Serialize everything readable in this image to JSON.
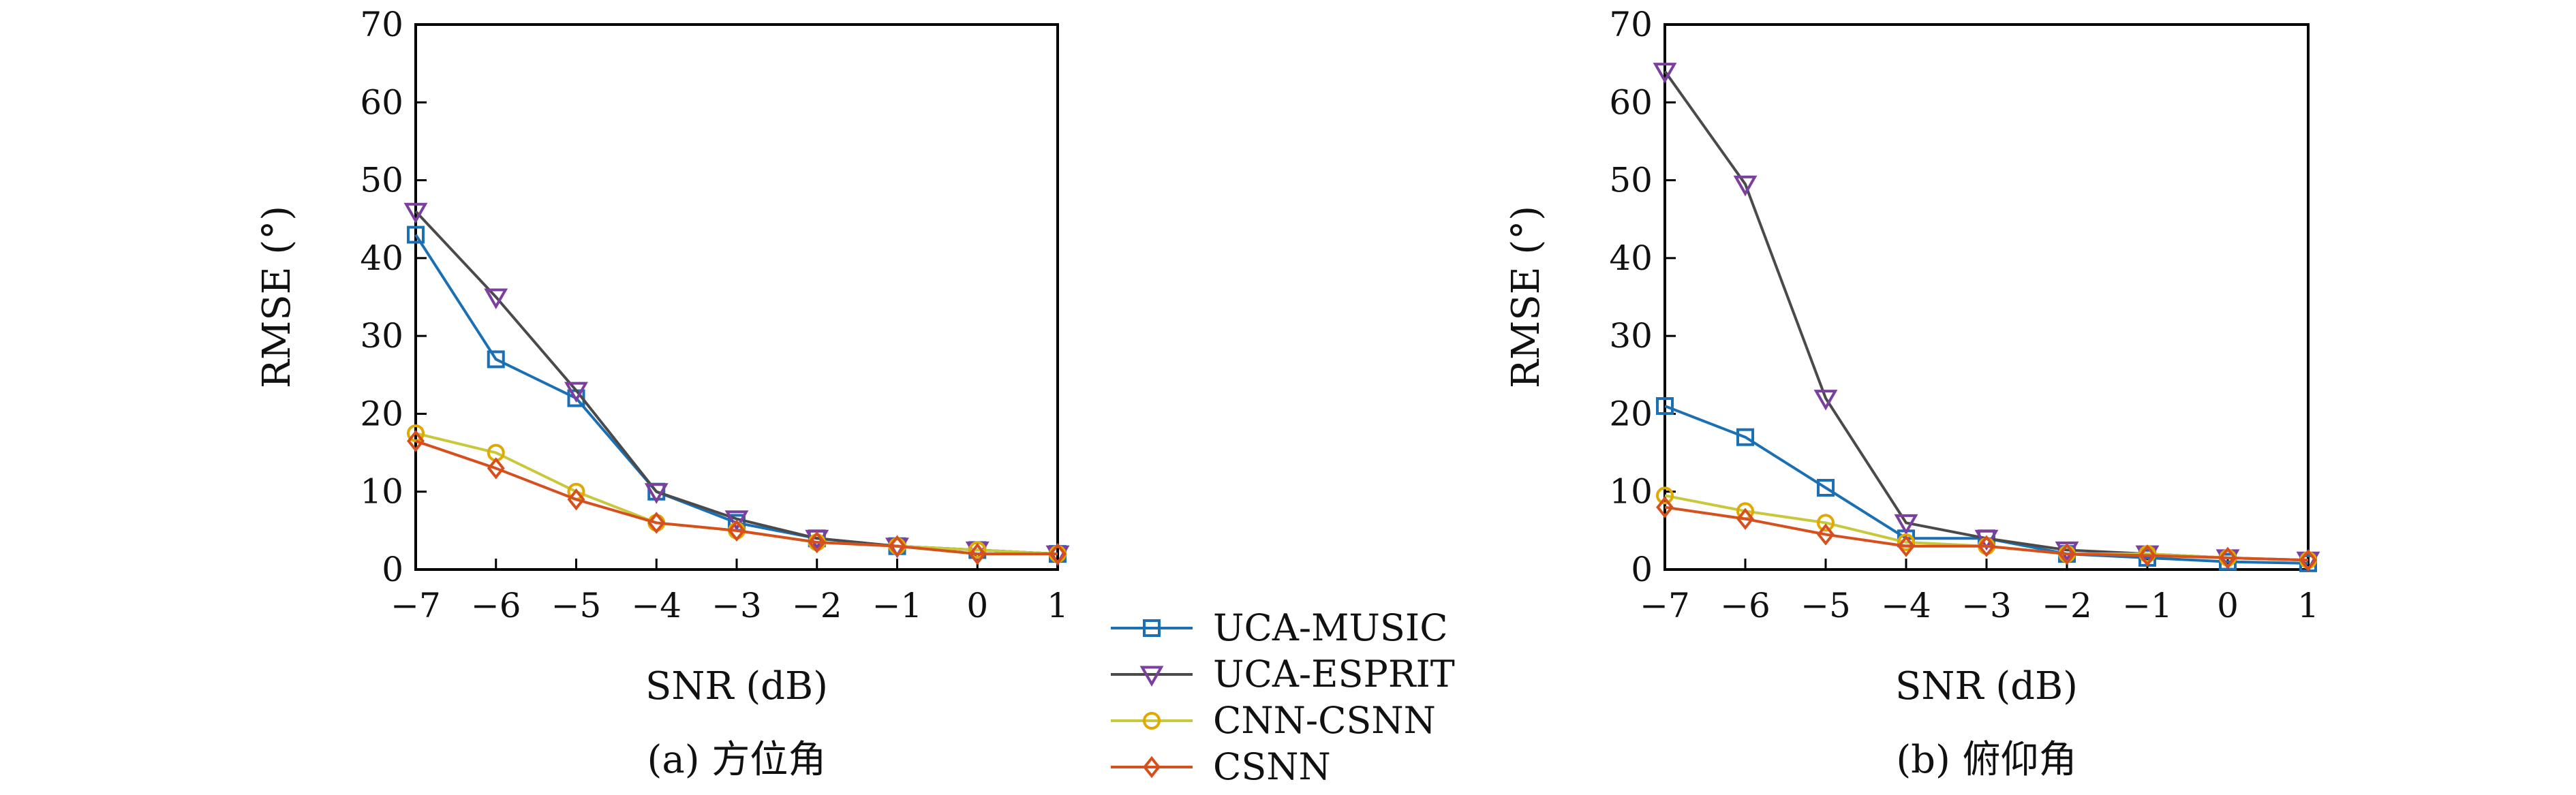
{
  "chart_data": [
    {
      "type": "line",
      "title": "",
      "caption": "(a) 方位角",
      "xlabel": "SNR (dB)",
      "ylabel": "RMSE (°)",
      "x": [
        -7,
        -6,
        -5,
        -4,
        -3,
        -2,
        -1,
        0,
        1
      ],
      "xtick_labels": [
        "−7",
        "−6",
        "−5",
        "−4",
        "−3",
        "−2",
        "−1",
        "0",
        "1"
      ],
      "xlim": [
        -7,
        1
      ],
      "ylim": [
        0,
        70
      ],
      "yticks": [
        0,
        10,
        20,
        30,
        40,
        50,
        60,
        70
      ],
      "grid": false,
      "series": [
        {
          "name": "UCA-MUSIC",
          "values": [
            43,
            27,
            22,
            10,
            6,
            4,
            3,
            2.5,
            2
          ]
        },
        {
          "name": "UCA-ESPRIT",
          "values": [
            46,
            35,
            23,
            10,
            6.5,
            4,
            3,
            2.5,
            2
          ]
        },
        {
          "name": "CNN-CSNN",
          "values": [
            17.5,
            15,
            10,
            6,
            5,
            3.5,
            3,
            2.5,
            2
          ]
        },
        {
          "name": "CSNN",
          "values": [
            16.5,
            13,
            9,
            6,
            5,
            3.5,
            3,
            2,
            2
          ]
        }
      ]
    },
    {
      "type": "line",
      "title": "",
      "caption": "(b) 俯仰角",
      "xlabel": "SNR (dB)",
      "ylabel": "RMSE (°)",
      "x": [
        -7,
        -6,
        -5,
        -4,
        -3,
        -2,
        -1,
        0,
        1
      ],
      "xtick_labels": [
        "−7",
        "−6",
        "−5",
        "−4",
        "−3",
        "−2",
        "−1",
        "0",
        "1"
      ],
      "xlim": [
        -7,
        1
      ],
      "ylim": [
        0,
        70
      ],
      "yticks": [
        0,
        10,
        20,
        30,
        40,
        50,
        60,
        70
      ],
      "grid": false,
      "series": [
        {
          "name": "UCA-MUSIC",
          "values": [
            21,
            17,
            10.5,
            4,
            4,
            2,
            1.5,
            1,
            0.8
          ]
        },
        {
          "name": "UCA-ESPRIT",
          "values": [
            64,
            49.5,
            22,
            6,
            4,
            2.5,
            2,
            1.5,
            1.2
          ]
        },
        {
          "name": "CNN-CSNN",
          "values": [
            9.5,
            7.5,
            6,
            3.5,
            3,
            2,
            2,
            1.5,
            1.2
          ]
        },
        {
          "name": "CSNN",
          "values": [
            8,
            6.5,
            4.5,
            3,
            3,
            2,
            1.8,
            1.5,
            1.2
          ]
        }
      ]
    }
  ],
  "legend": {
    "placement": "bottom-center",
    "entries": [
      {
        "label": "UCA-MUSIC",
        "color": "#1a6fb5",
        "marker": "square"
      },
      {
        "label": "UCA-ESPRIT",
        "color": "#4a4a4a",
        "marker_color": "#7b3fa0",
        "marker": "triangle-down"
      },
      {
        "label": "CNN-CSNN",
        "color": "#c8c83c",
        "marker_color": "#e0a800",
        "marker": "circle"
      },
      {
        "label": "CSNN",
        "color": "#d6501e",
        "marker_color": "#d6501e",
        "marker": "diamond"
      }
    ]
  }
}
